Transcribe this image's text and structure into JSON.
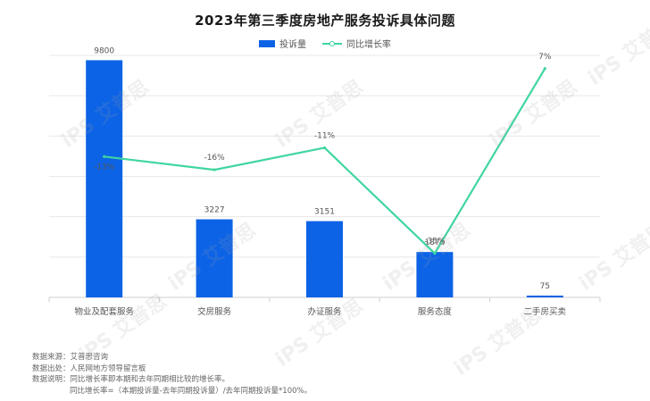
{
  "title": "2023年第三季度房地产服务投诉具体问题",
  "legend": {
    "bar_label": "投诉量",
    "line_label": "同比增长率"
  },
  "colors": {
    "bar": "#0d63e6",
    "line": "#3fd69f",
    "grid": "#e8e8e8",
    "axis": "#cfcfcf"
  },
  "chart_data": {
    "type": "bar",
    "categories": [
      "物业及配套服务",
      "交房服务",
      "办证服务",
      "服务态度",
      "二手房买卖"
    ],
    "series": [
      {
        "name": "投诉量",
        "type": "bar",
        "values": [
          9800,
          3227,
          3151,
          1876,
          75
        ]
      },
      {
        "name": "同比增长率",
        "type": "line",
        "values": [
          -13,
          -16,
          -11,
          -35,
          7
        ],
        "unit": "%"
      }
    ],
    "bar_labels": [
      "9800",
      "3227",
      "3151",
      "1876",
      "75"
    ],
    "line_labels": [
      "-13%",
      "-16%",
      "-11%",
      "-35%",
      "7%"
    ],
    "ylim_left": [
      0,
      10000
    ],
    "ylim_right": [
      -45,
      10
    ],
    "grid": true,
    "legend_position": "top-center"
  },
  "notes": {
    "source": "数据来源：艾普思咨询",
    "origin": "数据出处：人民网地方领导留言板",
    "explain": "数据说明：同比增长率即本期和去年同期相比较的增长率。",
    "formula": "同比增长率=（本期投诉量-去年同期投诉量）/去年同期投诉量*100%。"
  },
  "watermark_text": "iPS 艾普思"
}
